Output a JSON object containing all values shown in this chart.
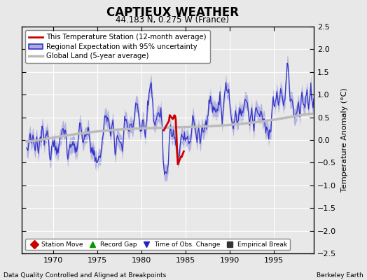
{
  "title": "CAPTIEUX WEATHER",
  "subtitle": "44.183 N, 0.275 W (France)",
  "ylabel": "Temperature Anomaly (°C)",
  "xlabel_left": "Data Quality Controlled and Aligned at Breakpoints",
  "xlabel_right": "Berkeley Earth",
  "ylim": [
    -2.5,
    2.5
  ],
  "xlim": [
    1966.5,
    1999.5
  ],
  "xticks": [
    1970,
    1975,
    1980,
    1985,
    1990,
    1995
  ],
  "yticks": [
    -2.5,
    -2,
    -1.5,
    -1,
    -0.5,
    0,
    0.5,
    1,
    1.5,
    2,
    2.5
  ],
  "ytick_labels": [
    "-2.5",
    "-2",
    "-1.5",
    "-1",
    "-0.5",
    "0",
    "0.5",
    "1",
    "1.5",
    "2",
    "2.5"
  ],
  "bg_color": "#e8e8e8",
  "plot_bg_color": "#e8e8e8",
  "grid_color": "white",
  "regional_color": "#3333cc",
  "regional_fill_color": "#aaaadd",
  "station_color": "#cc0000",
  "global_color": "#bbbbbb",
  "legend_main": [
    {
      "label": "This Temperature Station (12-month average)",
      "color": "#cc0000",
      "lw": 2
    },
    {
      "label": "Regional Expectation with 95% uncertainty",
      "color": "#3333cc",
      "fill": "#aaaadd"
    },
    {
      "label": "Global Land (5-year average)",
      "color": "#bbbbbb",
      "lw": 2.5
    }
  ],
  "bottom_legend": [
    {
      "label": "Station Move",
      "marker": "D",
      "color": "#cc0000"
    },
    {
      "label": "Record Gap",
      "marker": "^",
      "color": "#009900"
    },
    {
      "label": "Time of Obs. Change",
      "marker": "v",
      "color": "#2222cc"
    },
    {
      "label": "Empirical Break",
      "marker": "s",
      "color": "#333333"
    }
  ]
}
